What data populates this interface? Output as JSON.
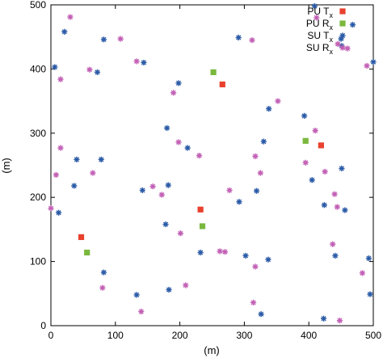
{
  "chart_data": {
    "type": "scatter",
    "xlabel": "(m)",
    "ylabel": "(m)",
    "xlim": [
      0,
      500
    ],
    "ylim": [
      0,
      500
    ],
    "x_ticks": [
      0,
      100,
      200,
      300,
      400,
      500
    ],
    "y_ticks": [
      0,
      100,
      200,
      300,
      400,
      500
    ],
    "grid": false,
    "legend_position": "top-right",
    "series": [
      {
        "name": "PU Tx",
        "name_main": "PU T",
        "name_sub": "x",
        "marker": "square",
        "color": "#e8412e",
        "points": [
          [
            266,
            376
          ],
          [
            232,
            181
          ],
          [
            47,
            138
          ],
          [
            419,
            281
          ]
        ]
      },
      {
        "name": "PU Rx",
        "name_main": "PU R",
        "name_sub": "x",
        "marker": "square",
        "color": "#7ab83e",
        "points": [
          [
            252,
            395
          ],
          [
            235,
            155
          ],
          [
            56,
            114
          ],
          [
            395,
            288
          ]
        ]
      },
      {
        "name": "SU Tx",
        "name_main": "SU T",
        "name_sub": "x",
        "marker": "star",
        "color": "#2a5aa6",
        "points": [
          [
            6,
            403
          ],
          [
            21,
            458
          ],
          [
            82,
            446
          ],
          [
            72,
            395
          ],
          [
            144,
            410
          ],
          [
            198,
            378
          ],
          [
            291,
            449
          ],
          [
            338,
            338
          ],
          [
            393,
            327
          ],
          [
            405,
            227
          ],
          [
            36,
            218
          ],
          [
            40,
            259
          ],
          [
            12,
            176
          ],
          [
            78,
            259
          ],
          [
            142,
            211
          ],
          [
            180,
            308
          ],
          [
            182,
            219
          ],
          [
            178,
            158
          ],
          [
            212,
            277
          ],
          [
            232,
            114
          ],
          [
            292,
            193
          ],
          [
            302,
            109
          ],
          [
            319,
            210
          ],
          [
            330,
            287
          ],
          [
            337,
            103
          ],
          [
            183,
            56
          ],
          [
            133,
            48
          ],
          [
            82,
            83
          ],
          [
            326,
            18
          ],
          [
            423,
            11
          ],
          [
            424,
            188
          ],
          [
            441,
            109
          ],
          [
            451,
            245
          ],
          [
            456,
            180
          ],
          [
            450,
            447
          ],
          [
            451,
            436
          ],
          [
            468,
            469
          ],
          [
            493,
            105
          ],
          [
            495,
            49
          ],
          [
            500,
            411
          ],
          [
            409,
            498
          ]
        ]
      },
      {
        "name": "SU Rx",
        "name_main": "SU R",
        "name_sub": "x",
        "marker": "star",
        "color": "#c25fb5",
        "points": [
          [
            30,
            481
          ],
          [
            108,
            447
          ],
          [
            15,
            384
          ],
          [
            60,
            399
          ],
          [
            133,
            412
          ],
          [
            190,
            363
          ],
          [
            312,
            445
          ],
          [
            352,
            350
          ],
          [
            15,
            277
          ],
          [
            8,
            235
          ],
          [
            65,
            238
          ],
          [
            0,
            183
          ],
          [
            158,
            217
          ],
          [
            172,
            204
          ],
          [
            198,
            286
          ],
          [
            230,
            265
          ],
          [
            201,
            144
          ],
          [
            209,
            63
          ],
          [
            277,
            211
          ],
          [
            262,
            116
          ],
          [
            270,
            115
          ],
          [
            317,
            264
          ],
          [
            325,
            238
          ],
          [
            317,
            92
          ],
          [
            314,
            36
          ],
          [
            395,
            254
          ],
          [
            410,
            304
          ],
          [
            425,
            240
          ],
          [
            440,
            205
          ],
          [
            444,
            185
          ],
          [
            437,
            127
          ],
          [
            483,
            82
          ],
          [
            448,
            8
          ],
          [
            80,
            59
          ],
          [
            140,
            22
          ],
          [
            445,
            439
          ],
          [
            460,
            432
          ],
          [
            490,
            405
          ],
          [
            412,
            480
          ]
        ]
      }
    ]
  }
}
